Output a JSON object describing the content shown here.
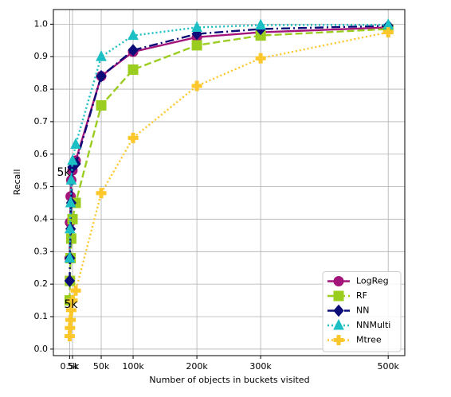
{
  "chart_data": {
    "type": "line",
    "xlabel": "Number of objects in buckets visited",
    "ylabel": "Recall",
    "x": [
      500,
      1000,
      2000,
      3000,
      5000,
      10000,
      50000,
      100000,
      200000,
      300000,
      500000
    ],
    "series": [
      {
        "name": "LogReg",
        "color": "#a3157a",
        "linestyle": "solid",
        "marker": "circle",
        "values": [
          0.28,
          0.39,
          0.47,
          0.52,
          0.55,
          0.58,
          0.84,
          0.915,
          0.96,
          0.975,
          0.99
        ]
      },
      {
        "name": "RF",
        "color": "#9acd1f",
        "linestyle": "dashed",
        "marker": "square",
        "values": [
          0.15,
          0.21,
          0.28,
          0.34,
          0.4,
          0.45,
          0.75,
          0.86,
          0.935,
          0.965,
          0.985
        ]
      },
      {
        "name": "NN",
        "color": "#0c0c78",
        "linestyle": "dashdot",
        "marker": "diamond",
        "values": [
          0.21,
          0.28,
          0.37,
          0.45,
          0.56,
          0.57,
          0.84,
          0.92,
          0.97,
          0.985,
          0.995
        ]
      },
      {
        "name": "NNMulti",
        "color": "#1bbfc4",
        "linestyle": "dotted",
        "marker": "triangle",
        "values": [
          0.28,
          0.37,
          0.45,
          0.52,
          0.58,
          0.63,
          0.9,
          0.965,
          0.99,
          0.997,
          0.998
        ]
      },
      {
        "name": "Mtree",
        "color": "#fcc72a",
        "linestyle": "dotted",
        "marker": "plus",
        "values": [
          0.04,
          0.065,
          0.09,
          0.12,
          0.15,
          0.18,
          0.48,
          0.65,
          0.81,
          0.895,
          0.975
        ]
      }
    ],
    "xlim": [
      -25000,
      526000
    ],
    "ylim": [
      -0.02,
      1.045
    ],
    "xticks": [
      {
        "value": 500,
        "label": "0.5k"
      },
      {
        "value": 5000,
        "label": "5k"
      },
      {
        "value": 50000,
        "label": "50k"
      },
      {
        "value": 100000,
        "label": "100k"
      },
      {
        "value": 200000,
        "label": "200k"
      },
      {
        "value": 300000,
        "label": "300k"
      },
      {
        "value": 500000,
        "label": "500k"
      }
    ],
    "yticks": [
      0,
      0.1,
      0.2,
      0.3,
      0.4,
      0.5,
      0.6,
      0.7,
      0.8,
      0.9,
      1
    ],
    "ytick_labels": [
      "0.0",
      "0.1",
      "0.2",
      "0.3",
      "0.4",
      "0.5",
      "0.6",
      "0.7",
      "0.8",
      "0.9",
      "1.0"
    ],
    "annotations": [
      "5k",
      "5k"
    ],
    "grid": true,
    "legend": "lower right"
  }
}
